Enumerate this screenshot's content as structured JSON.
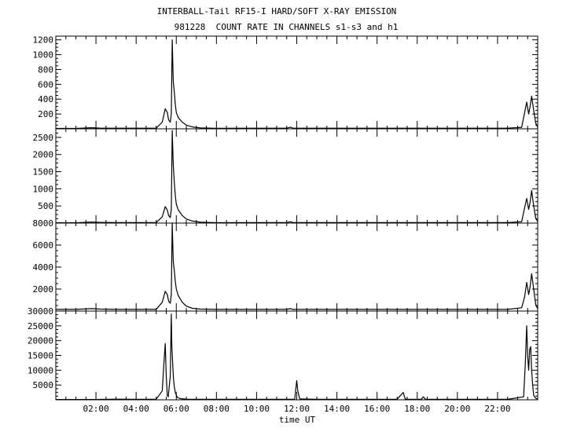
{
  "title_line1": "INTERBALL-Tail RF15-I HARD/SOFT X-RAY EMISSION",
  "title_line2": "981228  COUNT RATE IN CHANNELS s1-s3 and h1",
  "chart_data": {
    "type": "line",
    "xlabel": "time UT",
    "x_unit": "hours UT",
    "xlim": [
      0,
      24
    ],
    "x_tick_labels": [
      "02:00",
      "04:00",
      "06:00",
      "08:00",
      "10:00",
      "12:00",
      "14:00",
      "16:00",
      "18:00",
      "20:00",
      "22:00"
    ],
    "x_tick_hours": [
      2,
      4,
      6,
      8,
      10,
      12,
      14,
      16,
      18,
      20,
      22
    ],
    "panels": [
      {
        "name": "s1",
        "ylim": [
          0,
          1250
        ],
        "y_ticks": [
          200,
          400,
          600,
          800,
          1000,
          1200
        ],
        "x": [
          0.0,
          1.0,
          1.8,
          2.2,
          3.0,
          4.0,
          5.0,
          5.3,
          5.45,
          5.55,
          5.62,
          5.7,
          5.75,
          5.8,
          5.85,
          5.9,
          5.95,
          6.0,
          6.1,
          6.3,
          6.5,
          6.8,
          7.2,
          8.0,
          10.0,
          11.5,
          11.7,
          11.8,
          12.5,
          14.0,
          16.0,
          17.5,
          18.0,
          20.0,
          22.5,
          23.2,
          23.35,
          23.45,
          23.55,
          23.62,
          23.7,
          23.8,
          23.9,
          24.0
        ],
        "y": [
          5,
          5,
          15,
          10,
          8,
          8,
          8,
          90,
          270,
          220,
          120,
          90,
          200,
          1200,
          640,
          500,
          330,
          220,
          150,
          90,
          50,
          25,
          12,
          6,
          8,
          8,
          22,
          8,
          8,
          8,
          8,
          8,
          8,
          8,
          8,
          20,
          220,
          360,
          200,
          300,
          440,
          250,
          80,
          20
        ]
      },
      {
        "name": "s2",
        "ylim": [
          0,
          2750
        ],
        "y_ticks": [
          500,
          1000,
          1500,
          2000,
          2500
        ],
        "x": [
          0.0,
          1.0,
          1.8,
          2.2,
          3.0,
          4.0,
          5.0,
          5.3,
          5.45,
          5.55,
          5.62,
          5.7,
          5.75,
          5.8,
          5.85,
          5.9,
          5.95,
          6.0,
          6.1,
          6.3,
          6.5,
          6.8,
          7.2,
          8.0,
          10.0,
          11.5,
          11.7,
          11.8,
          12.5,
          14.0,
          16.0,
          17.5,
          18.0,
          20.0,
          22.5,
          23.2,
          23.35,
          23.45,
          23.55,
          23.62,
          23.7,
          23.8,
          23.9,
          24.0
        ],
        "y": [
          10,
          10,
          30,
          20,
          15,
          15,
          15,
          180,
          480,
          380,
          220,
          160,
          400,
          2700,
          1700,
          1200,
          800,
          550,
          380,
          220,
          120,
          60,
          25,
          12,
          15,
          15,
          40,
          15,
          15,
          15,
          15,
          15,
          15,
          15,
          15,
          40,
          450,
          720,
          400,
          600,
          950,
          500,
          150,
          40
        ]
      },
      {
        "name": "s3",
        "ylim": [
          0,
          8000
        ],
        "y_ticks": [
          2000,
          4000,
          6000,
          8000
        ],
        "x": [
          0.0,
          1.0,
          1.8,
          2.2,
          3.0,
          4.0,
          5.0,
          5.3,
          5.45,
          5.55,
          5.62,
          5.7,
          5.75,
          5.8,
          5.85,
          5.9,
          5.95,
          6.0,
          6.1,
          6.3,
          6.5,
          6.8,
          7.2,
          8.0,
          10.0,
          11.5,
          11.7,
          11.8,
          12.5,
          14.0,
          16.0,
          17.5,
          18.0,
          20.0,
          22.5,
          23.2,
          23.35,
          23.45,
          23.55,
          23.62,
          23.7,
          23.8,
          23.9,
          24.0
        ],
        "y": [
          150,
          150,
          220,
          180,
          150,
          150,
          150,
          800,
          1800,
          1500,
          900,
          700,
          1500,
          8000,
          4500,
          3700,
          2700,
          2000,
          1400,
          800,
          450,
          250,
          180,
          150,
          150,
          150,
          220,
          150,
          150,
          150,
          150,
          150,
          150,
          150,
          150,
          300,
          1300,
          2600,
          1500,
          2200,
          3400,
          2000,
          600,
          200
        ]
      },
      {
        "name": "h1",
        "ylim": [
          0,
          30000
        ],
        "y_ticks": [
          5000,
          10000,
          15000,
          20000,
          25000,
          30000
        ],
        "x": [
          0.0,
          1.0,
          2.0,
          3.0,
          4.0,
          5.0,
          5.3,
          5.38,
          5.45,
          5.5,
          5.55,
          5.6,
          5.7,
          5.75,
          5.78,
          5.82,
          5.86,
          5.9,
          5.95,
          6.05,
          6.2,
          6.5,
          7.0,
          8.0,
          10.0,
          11.9,
          12.0,
          12.05,
          12.15,
          13.0,
          15.0,
          17.0,
          17.3,
          17.4,
          17.5,
          18.2,
          18.3,
          18.4,
          20.0,
          22.5,
          23.3,
          23.38,
          23.45,
          23.5,
          23.55,
          23.6,
          23.65,
          23.7,
          23.75,
          23.8,
          23.9,
          24.0
        ],
        "y": [
          100,
          100,
          100,
          200,
          150,
          200,
          3000,
          12000,
          19000,
          8000,
          1500,
          1000,
          8000,
          29000,
          18000,
          12000,
          7000,
          4500,
          2500,
          800,
          400,
          200,
          150,
          150,
          150,
          200,
          6500,
          3000,
          300,
          150,
          150,
          200,
          2500,
          300,
          150,
          150,
          1000,
          200,
          150,
          150,
          1000,
          12000,
          25000,
          15000,
          10000,
          17000,
          18000,
          10000,
          5000,
          1500,
          500,
          200
        ]
      }
    ]
  }
}
